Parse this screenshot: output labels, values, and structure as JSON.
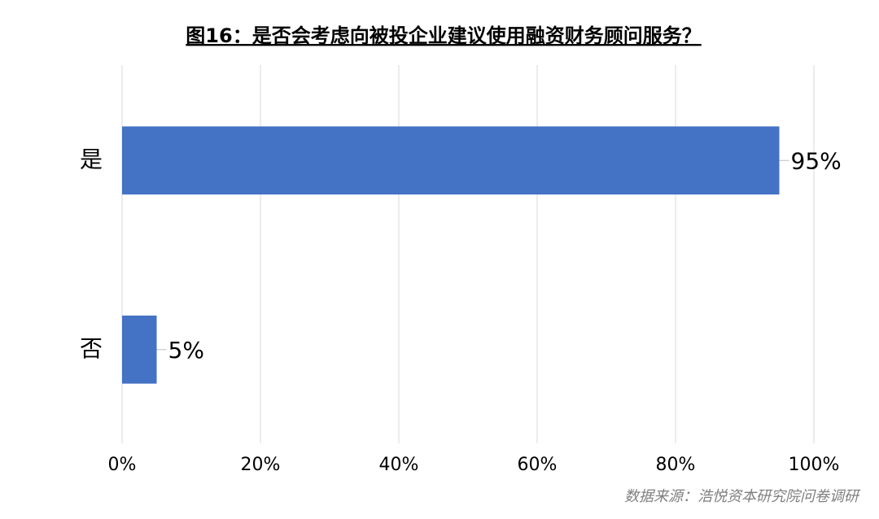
{
  "chart_data": {
    "type": "hbar",
    "title": "图16：是否会考虑向被投企业建议使用融资财务顾问服务？",
    "source": "数据来源：浩悦资本研究院问卷调研",
    "categories": [
      "是",
      "否"
    ],
    "values": [
      95,
      5
    ],
    "value_labels": [
      "95%",
      "5%"
    ],
    "color": "#4472c4",
    "xlim": [
      0,
      100
    ],
    "xticks": [
      {
        "value": 0,
        "label": "0%"
      },
      {
        "value": 20,
        "label": "20%"
      },
      {
        "value": 40,
        "label": "40%"
      },
      {
        "value": 60,
        "label": "60%"
      },
      {
        "value": 80,
        "label": "80%"
      },
      {
        "value": 100,
        "label": "100%"
      }
    ],
    "grid": true
  }
}
